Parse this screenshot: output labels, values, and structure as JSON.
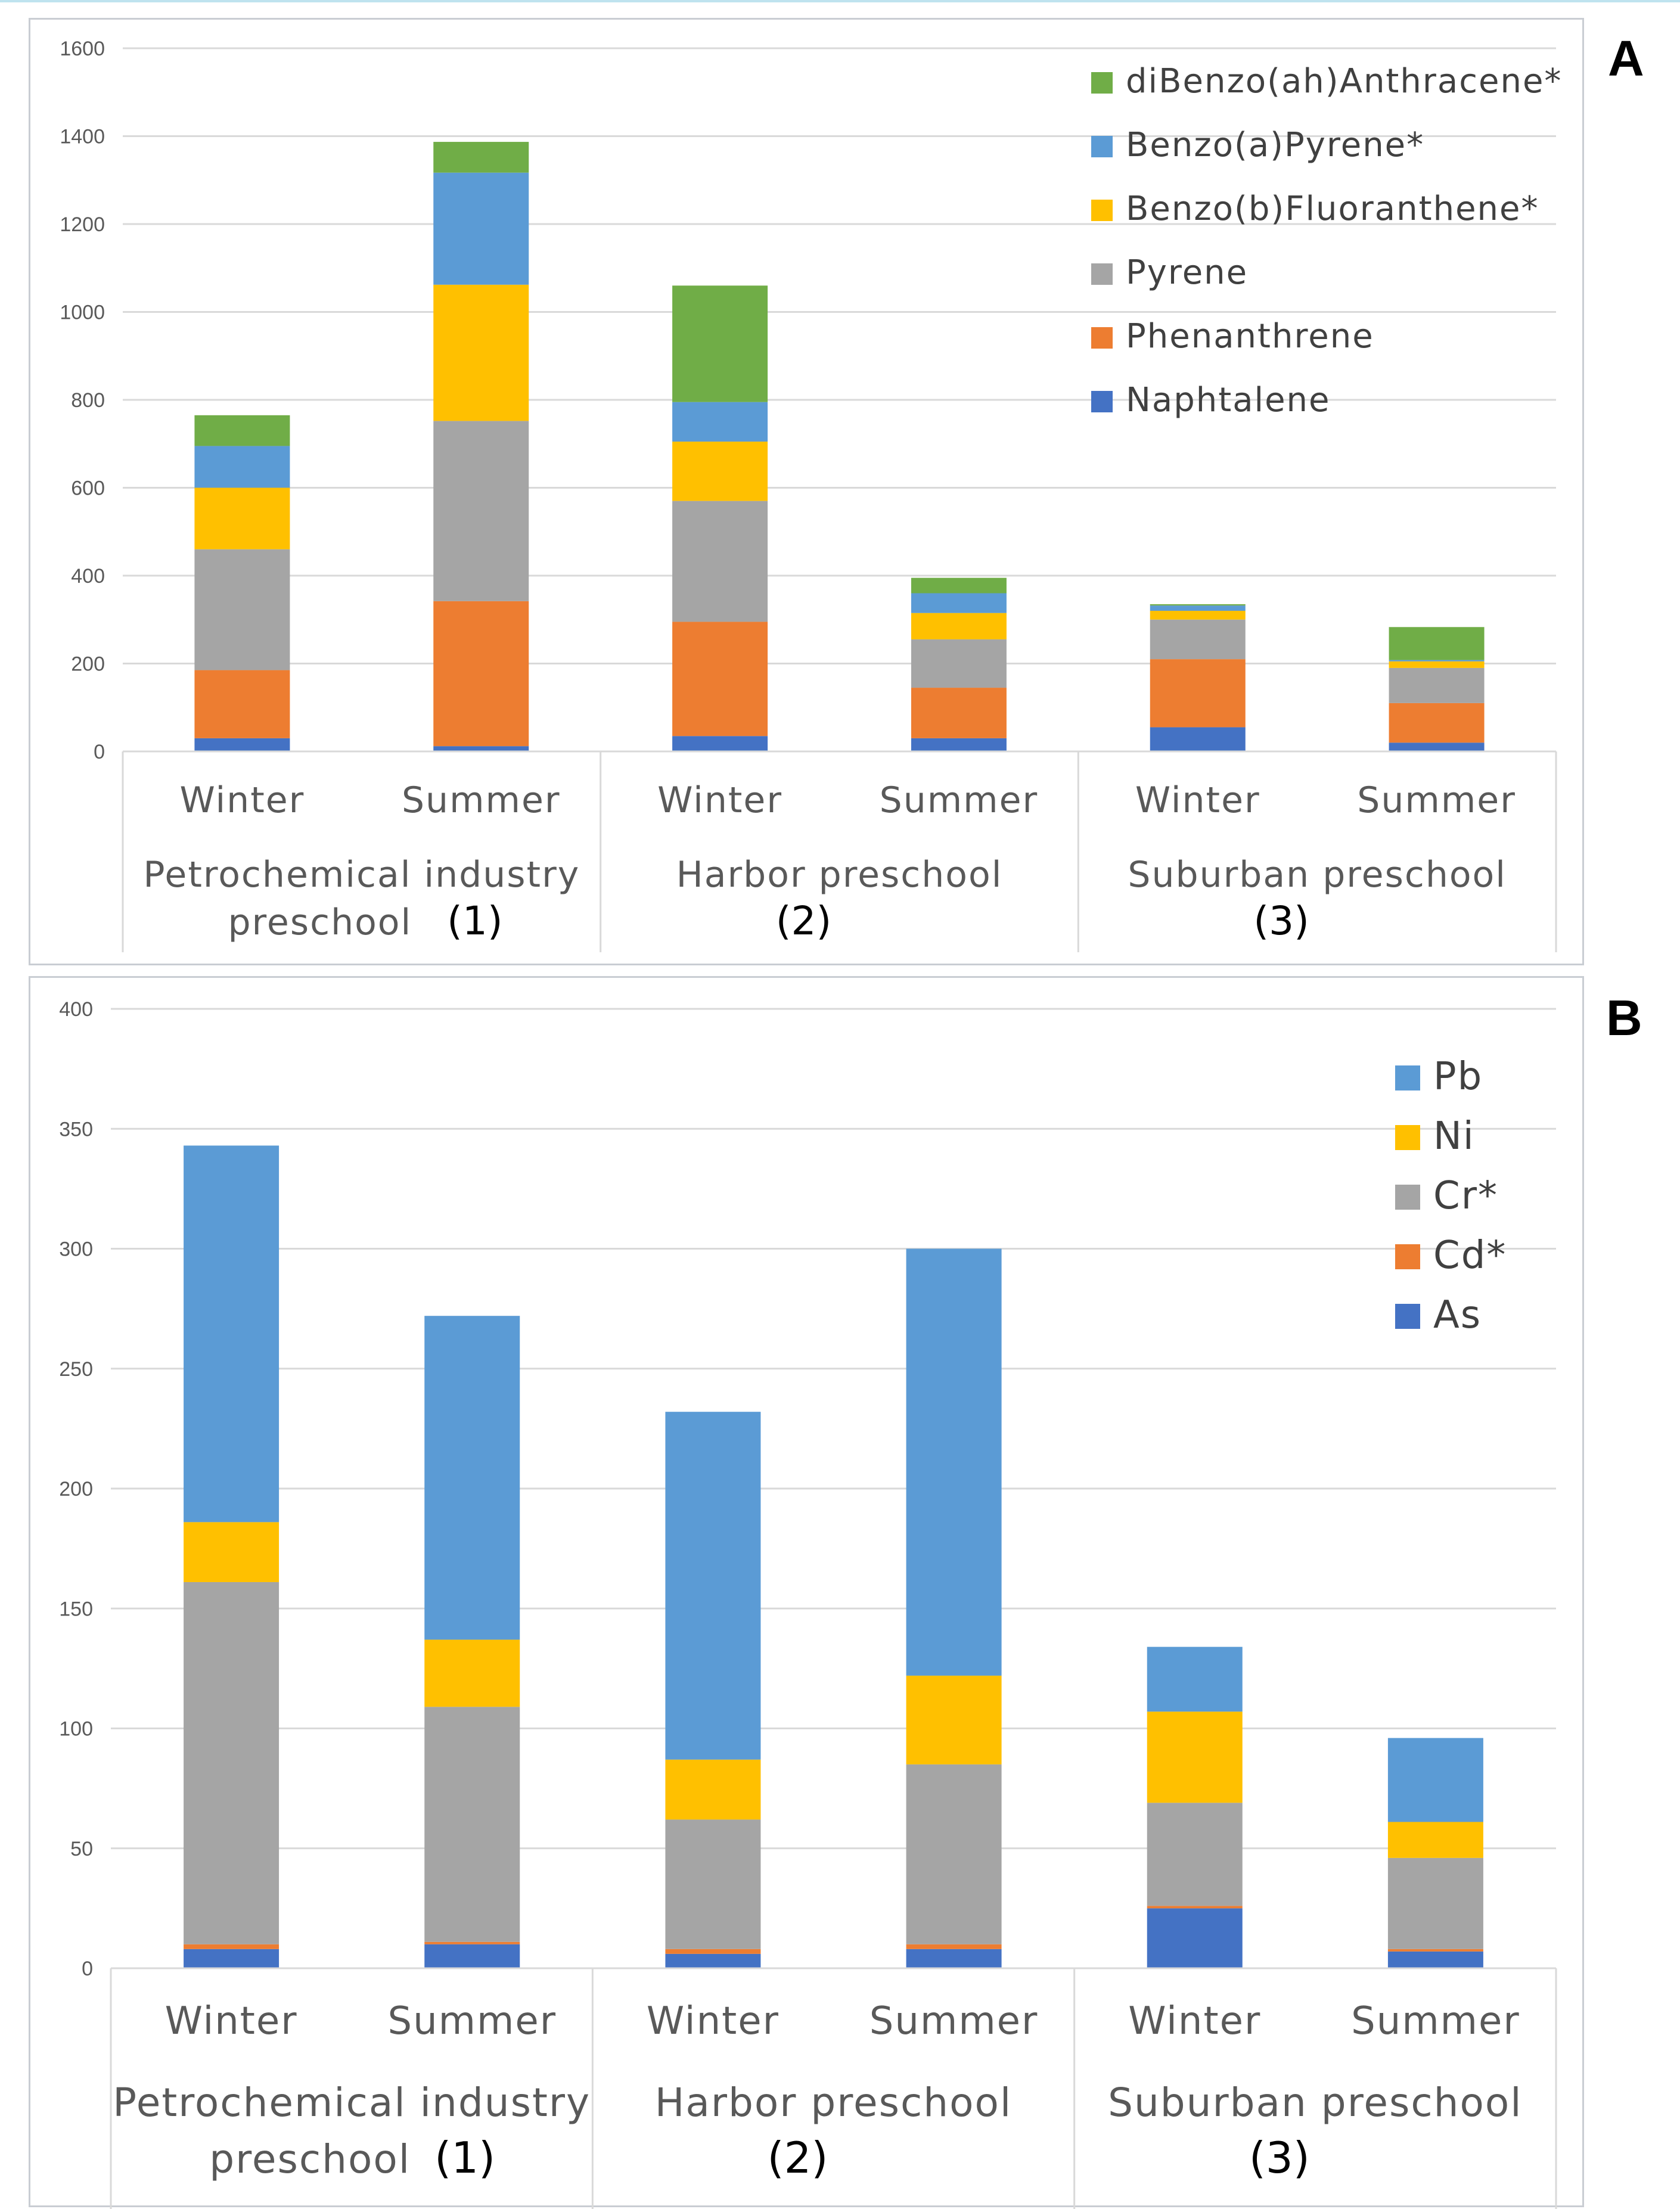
{
  "chart_data": [
    {
      "type": "bar",
      "stacked": true,
      "panel_label": "A",
      "categories": [
        "Winter",
        "Summer",
        "Winter",
        "Summer",
        "Winter",
        "Summer"
      ],
      "groups": [
        {
          "label": "Petrochemical industry preschool",
          "number": "(1)"
        },
        {
          "label": "Harbor preschool",
          "number": "(2)"
        },
        {
          "label": "Suburban preschool",
          "number": "(3)"
        }
      ],
      "ylim": [
        0,
        1600
      ],
      "yticks": [
        "0",
        "200",
        "400",
        "600",
        "800",
        "1000",
        "1200",
        "1400",
        "1600"
      ],
      "grid": true,
      "legend_position": "top-right",
      "series": [
        {
          "name": "Naphtalene",
          "color": "#4472c4",
          "values": [
            30,
            12,
            35,
            30,
            55,
            20
          ]
        },
        {
          "name": "Phenanthrene",
          "color": "#ed7d31",
          "values": [
            155,
            330,
            260,
            115,
            155,
            90
          ]
        },
        {
          "name": "Pyrene",
          "color": "#a5a5a5",
          "values": [
            275,
            410,
            275,
            110,
            90,
            80
          ]
        },
        {
          "name": "Benzo(b)Fluoranthene*",
          "color": "#ffc000",
          "values": [
            140,
            310,
            135,
            60,
            20,
            15
          ]
        },
        {
          "name": "Benzo(a)Pyrene*",
          "color": "#5b9bd5",
          "values": [
            95,
            255,
            90,
            45,
            12,
            3
          ]
        },
        {
          "name": "diBenzo(ah)Anthracene*",
          "color": "#70ad47",
          "values": [
            70,
            70,
            265,
            35,
            3,
            75
          ]
        }
      ]
    },
    {
      "type": "bar",
      "stacked": true,
      "panel_label": "B",
      "categories": [
        "Winter",
        "Summer",
        "Winter",
        "Summer",
        "Winter",
        "Summer"
      ],
      "groups": [
        {
          "label": "Petrochemical industry preschool",
          "number": "(1)"
        },
        {
          "label": "Harbor preschool",
          "number": "(2)"
        },
        {
          "label": "Suburban preschool",
          "number": "(3)"
        }
      ],
      "ylim": [
        0,
        400
      ],
      "yticks": [
        "0",
        "50",
        "100",
        "150",
        "200",
        "250",
        "300",
        "350",
        "400"
      ],
      "grid": true,
      "legend_position": "top-right",
      "series": [
        {
          "name": "As",
          "color": "#4472c4",
          "values": [
            8,
            10,
            6,
            8,
            25,
            7
          ]
        },
        {
          "name": "Cd*",
          "color": "#ed7d31",
          "values": [
            2,
            1,
            2,
            2,
            1,
            1
          ]
        },
        {
          "name": "Cr*",
          "color": "#a5a5a5",
          "values": [
            151,
            98,
            54,
            75,
            43,
            38
          ]
        },
        {
          "name": "Ni",
          "color": "#ffc000",
          "values": [
            25,
            28,
            25,
            37,
            38,
            15
          ]
        },
        {
          "name": "Pb",
          "color": "#5b9bd5",
          "values": [
            157,
            135,
            145,
            178,
            27,
            35
          ]
        }
      ]
    }
  ]
}
